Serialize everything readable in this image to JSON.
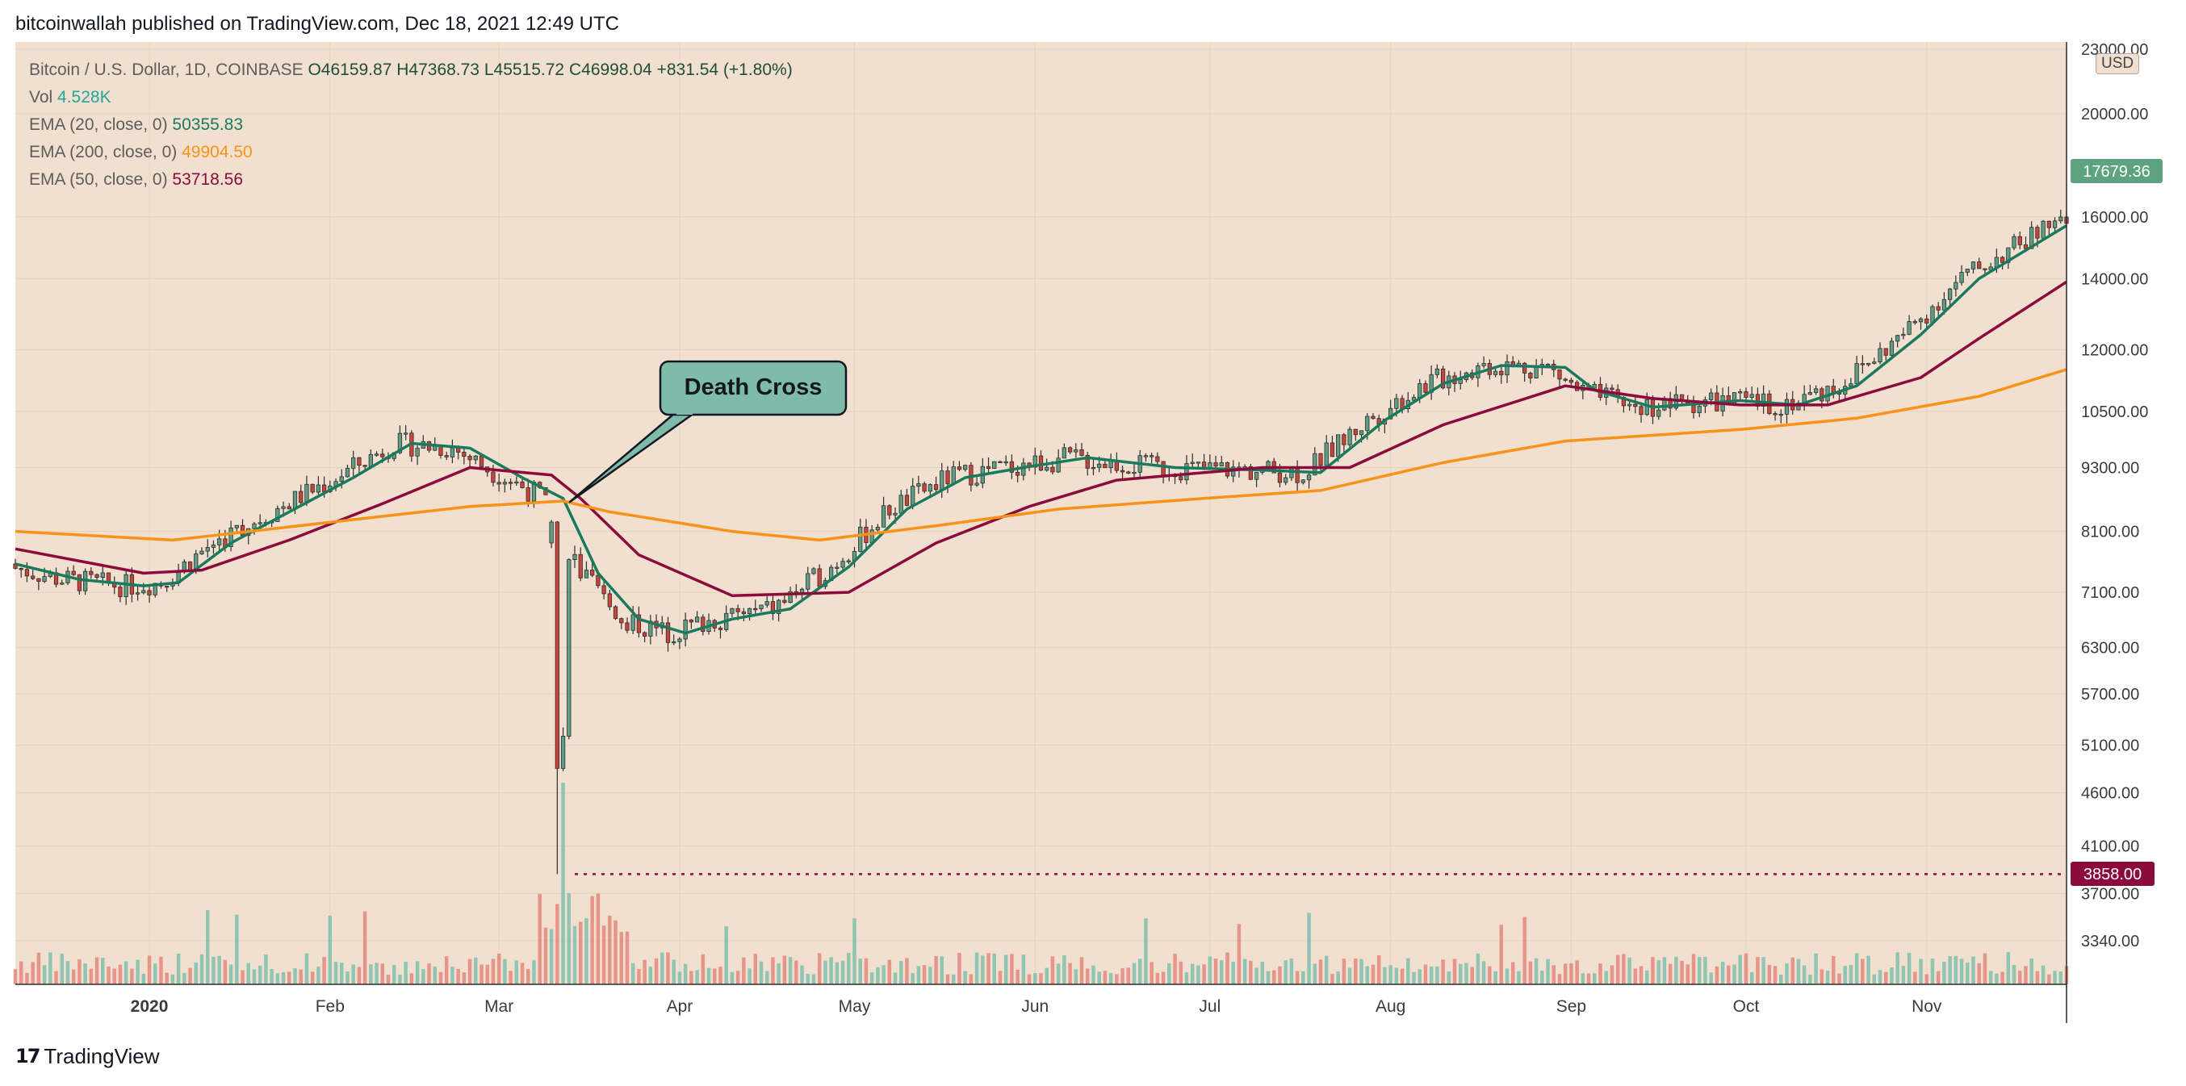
{
  "header": {
    "publisher": "bitcoinwallah published on TradingView.com, Dec 18, 2021 12:49 UTC"
  },
  "legend": {
    "symbol": "Bitcoin / U.S. Dollar, 1D, COINBASE",
    "open": "O46159.87",
    "high": "H47368.73",
    "low": "L45515.72",
    "close": "C46998.04",
    "change": "+831.54 (+1.80%)",
    "vol_label": "Vol",
    "vol_value": "4.528K",
    "ema20_label": "EMA (20, close, 0)",
    "ema20_value": "50355.83",
    "ema200_label": "EMA (200, close, 0)",
    "ema200_value": "49904.50",
    "ema50_label": "EMA (50, close, 0)",
    "ema50_value": "53718.56"
  },
  "annotation": {
    "label": "Death Cross"
  },
  "footer": {
    "brand": "TradingView"
  },
  "colors": {
    "background": "#f1e0cf",
    "up": "#5e9e86",
    "down": "#c9443a",
    "ema20": "#1a7a5e",
    "ema50": "#8b0b3c",
    "ema200": "#f7931a",
    "callout": "#7fbba9",
    "price_badge": "#5ea37f",
    "support_badge": "#8b0b3c"
  },
  "chart_data": {
    "type": "candlestick",
    "title": "Bitcoin / U.S. Dollar, 1D, COINBASE",
    "y_axis": {
      "unit": "USD",
      "scale": "log",
      "ticks": [
        "23000.00",
        "20000.00",
        "16000.00",
        "14000.00",
        "12000.00",
        "10500.00",
        "9300.00",
        "8100.00",
        "7100.00",
        "6300.00",
        "5700.00",
        "5100.00",
        "4600.00",
        "4100.00",
        "3700.00",
        "3340.00"
      ],
      "range": [
        3250,
        23000
      ]
    },
    "x_axis": {
      "ticks": [
        "2020",
        "Feb",
        "Mar",
        "Apr",
        "May",
        "Jun",
        "Jul",
        "Aug",
        "Sep",
        "Oct",
        "Nov"
      ],
      "range": [
        "2019-12-09",
        "2020-11-25"
      ]
    },
    "current_price": "17679.36",
    "support_level": "3858.00",
    "series": [
      {
        "name": "EMA (20, close, 0)",
        "points": [
          [
            "2019-12-09",
            7550
          ],
          [
            "2019-12-20",
            7300
          ],
          [
            "2019-12-31",
            7200
          ],
          [
            "2020-01-06",
            7250
          ],
          [
            "2020-01-15",
            7900
          ],
          [
            "2020-01-25",
            8450
          ],
          [
            "2020-02-05",
            9100
          ],
          [
            "2020-02-15",
            9800
          ],
          [
            "2020-02-25",
            9700
          ],
          [
            "2020-03-05",
            9100
          ],
          [
            "2020-03-12",
            8700
          ],
          [
            "2020-03-18",
            7400
          ],
          [
            "2020-03-25",
            6700
          ],
          [
            "2020-04-02",
            6500
          ],
          [
            "2020-04-10",
            6700
          ],
          [
            "2020-04-20",
            6850
          ],
          [
            "2020-04-30",
            7500
          ],
          [
            "2020-05-10",
            8500
          ],
          [
            "2020-05-20",
            9100
          ],
          [
            "2020-05-30",
            9300
          ],
          [
            "2020-06-10",
            9500
          ],
          [
            "2020-06-25",
            9300
          ],
          [
            "2020-07-10",
            9250
          ],
          [
            "2020-07-20",
            9200
          ],
          [
            "2020-07-31",
            10300
          ],
          [
            "2020-08-10",
            11150
          ],
          [
            "2020-08-20",
            11600
          ],
          [
            "2020-08-31",
            11550
          ],
          [
            "2020-09-05",
            11000
          ],
          [
            "2020-09-15",
            10600
          ],
          [
            "2020-09-30",
            10750
          ],
          [
            "2020-10-10",
            10650
          ],
          [
            "2020-10-20",
            11100
          ],
          [
            "2020-10-31",
            12400
          ],
          [
            "2020-11-10",
            14000
          ],
          [
            "2020-11-25",
            15700
          ]
        ]
      },
      {
        "name": "EMA (50, close, 0)",
        "points": [
          [
            "2019-12-09",
            7800
          ],
          [
            "2019-12-31",
            7400
          ],
          [
            "2020-01-10",
            7450
          ],
          [
            "2020-01-25",
            7950
          ],
          [
            "2020-02-10",
            8600
          ],
          [
            "2020-02-25",
            9300
          ],
          [
            "2020-03-10",
            9150
          ],
          [
            "2020-03-15",
            8700
          ],
          [
            "2020-03-25",
            7700
          ],
          [
            "2020-04-10",
            7050
          ],
          [
            "2020-04-30",
            7100
          ],
          [
            "2020-05-15",
            7900
          ],
          [
            "2020-05-31",
            8550
          ],
          [
            "2020-06-15",
            9050
          ],
          [
            "2020-07-10",
            9300
          ],
          [
            "2020-07-25",
            9300
          ],
          [
            "2020-08-10",
            10200
          ],
          [
            "2020-08-31",
            11100
          ],
          [
            "2020-09-15",
            10800
          ],
          [
            "2020-09-30",
            10650
          ],
          [
            "2020-10-15",
            10650
          ],
          [
            "2020-10-31",
            11300
          ],
          [
            "2020-11-10",
            12300
          ],
          [
            "2020-11-25",
            13900
          ]
        ]
      },
      {
        "name": "EMA (200, close, 0)",
        "points": [
          [
            "2019-12-09",
            8100
          ],
          [
            "2020-01-05",
            7950
          ],
          [
            "2020-01-31",
            8250
          ],
          [
            "2020-02-25",
            8550
          ],
          [
            "2020-03-12",
            8650
          ],
          [
            "2020-03-20",
            8450
          ],
          [
            "2020-04-10",
            8100
          ],
          [
            "2020-04-25",
            7950
          ],
          [
            "2020-05-15",
            8200
          ],
          [
            "2020-06-05",
            8500
          ],
          [
            "2020-06-30",
            8700
          ],
          [
            "2020-07-20",
            8850
          ],
          [
            "2020-08-10",
            9400
          ],
          [
            "2020-08-31",
            9850
          ],
          [
            "2020-09-30",
            10100
          ],
          [
            "2020-10-20",
            10350
          ],
          [
            "2020-11-10",
            10850
          ],
          [
            "2020-11-25",
            11500
          ]
        ]
      }
    ]
  }
}
